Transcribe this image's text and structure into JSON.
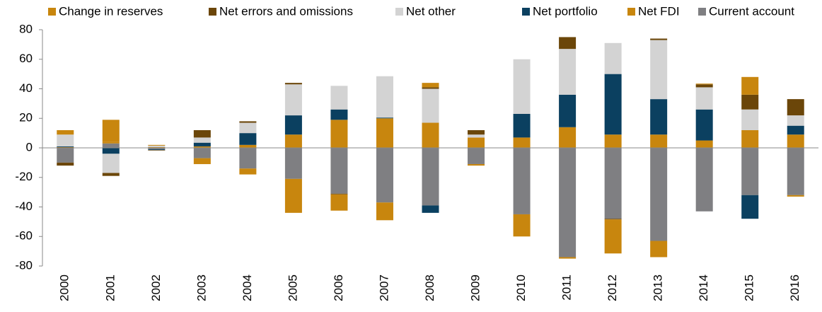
{
  "chart_data": {
    "type": "stacked_bar",
    "categories": [
      "2000",
      "2001",
      "2002",
      "2003",
      "2004",
      "2005",
      "2006",
      "2007",
      "2008",
      "2009",
      "2010",
      "2011",
      "2012",
      "2013",
      "2014",
      "2015",
      "2016"
    ],
    "series": [
      {
        "name": "Change in reserves",
        "color": "#c8860e",
        "values": [
          3,
          15,
          0.5,
          -4,
          -4,
          -23,
          -11,
          -12,
          3,
          -1,
          -15,
          -1,
          -23,
          -11,
          0.5,
          12,
          -1
        ]
      },
      {
        "name": "Net errors and omissions",
        "color": "#6b4609",
        "values": [
          -2,
          -2,
          -0.3,
          5,
          1,
          1,
          -0.5,
          0,
          1,
          3,
          0,
          8,
          -0.5,
          1,
          2,
          10,
          11
        ]
      },
      {
        "name": "Net other",
        "color": "#d3d3d3",
        "values": [
          8,
          -13,
          1,
          3.5,
          7,
          21,
          16,
          28,
          23,
          2,
          37,
          31,
          21,
          40,
          15,
          14,
          7
        ]
      },
      {
        "name": "Net portfolio",
        "color": "#0b4060",
        "values": [
          0.5,
          -4,
          -0.5,
          2.5,
          8,
          13,
          7,
          0.5,
          -5,
          0,
          16,
          22,
          41,
          24,
          21,
          -16,
          6
        ]
      },
      {
        "name": "Net FDI",
        "color": "#c8860e",
        "values": [
          0.5,
          1,
          0.5,
          1,
          2,
          9,
          19,
          20,
          17,
          7,
          7,
          14,
          9,
          9,
          5,
          12,
          9
        ]
      },
      {
        "name": "Current account",
        "color": "#7f7f82",
        "values": [
          -10,
          3,
          -1,
          -7,
          -14,
          -21,
          -31,
          -37,
          -39,
          -11,
          -45,
          -74,
          -48,
          -63,
          -43,
          -32,
          -32
        ]
      }
    ],
    "ylim": [
      -80,
      80
    ],
    "yticks": [
      -80,
      -60,
      -40,
      -20,
      0,
      20,
      40,
      60,
      80
    ]
  }
}
